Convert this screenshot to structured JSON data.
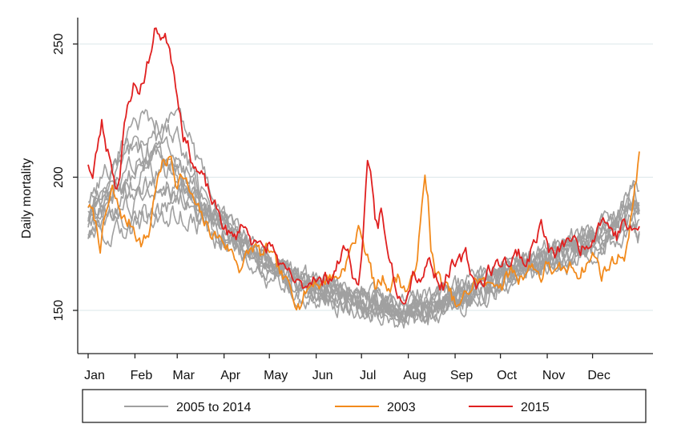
{
  "chart_data": {
    "type": "line",
    "title": "",
    "ylabel": "Daily mortality",
    "xlabel": "",
    "ylim": [
      137,
      260
    ],
    "xlim": [
      0,
      365
    ],
    "y_ticks": [
      150,
      200,
      250
    ],
    "month_ticks": [
      {
        "label": "Jan",
        "day": 0
      },
      {
        "label": "Feb",
        "day": 31
      },
      {
        "label": "Mar",
        "day": 59
      },
      {
        "label": "Apr",
        "day": 90
      },
      {
        "label": "May",
        "day": 120
      },
      {
        "label": "Jun",
        "day": 151
      },
      {
        "label": "Jul",
        "day": 181
      },
      {
        "label": "Aug",
        "day": 212
      },
      {
        "label": "Sep",
        "day": 243
      },
      {
        "label": "Oct",
        "day": 273
      },
      {
        "label": "Nov",
        "day": 304
      },
      {
        "label": "Dec",
        "day": 334
      }
    ],
    "grid": true,
    "legend_position": "bottom",
    "x_unit": "day of year",
    "series": [
      {
        "name": "2005 to 2014",
        "color": "#a0a0a0",
        "lines": [
          {
            "x": [
              0,
              15,
              30,
              45,
              60,
              75,
              90,
              105,
              120,
              135,
              150,
              165,
              180,
              195,
              210,
              225,
              240,
              255,
              270,
              285,
              300,
              315,
              330,
              345,
              360,
              365
            ],
            "y": [
              190,
              205,
              215,
              202,
              195,
              186,
              180,
              172,
              167,
              163,
              160,
              158,
              156,
              154,
              153,
              155,
              158,
              160,
              164,
              167,
              170,
              173,
              176,
              180,
              186,
              184
            ]
          },
          {
            "x": [
              0,
              15,
              30,
              45,
              60,
              75,
              90,
              105,
              120,
              135,
              150,
              165,
              180,
              195,
              210,
              225,
              240,
              255,
              270,
              285,
              300,
              315,
              330,
              345,
              360,
              365
            ],
            "y": [
              185,
              200,
              225,
              215,
              205,
              192,
              182,
              175,
              168,
              162,
              158,
              156,
              153,
              151,
              150,
              152,
              156,
              158,
              162,
              166,
              169,
              172,
              175,
              179,
              185,
              182
            ]
          },
          {
            "x": [
              0,
              15,
              30,
              45,
              60,
              75,
              90,
              105,
              120,
              135,
              150,
              165,
              180,
              195,
              210,
              225,
              240,
              255,
              270,
              285,
              300,
              315,
              330,
              345,
              360,
              365
            ],
            "y": [
              180,
              192,
              205,
              212,
              228,
              200,
              185,
              176,
              170,
              165,
              161,
              158,
              156,
              153,
              151,
              152,
              155,
              158,
              163,
              167,
              170,
              174,
              178,
              183,
              190,
              188
            ]
          },
          {
            "x": [
              0,
              15,
              30,
              45,
              60,
              75,
              90,
              105,
              120,
              135,
              150,
              165,
              180,
              195,
              210,
              225,
              240,
              255,
              270,
              285,
              300,
              315,
              330,
              345,
              360,
              365
            ],
            "y": [
              192,
              185,
              190,
              200,
              210,
              195,
              183,
              174,
              166,
              160,
              157,
              155,
              152,
              150,
              148,
              150,
              154,
              157,
              161,
              165,
              168,
              171,
              174,
              178,
              196,
              194
            ]
          },
          {
            "x": [
              0,
              15,
              30,
              45,
              60,
              75,
              90,
              105,
              120,
              135,
              150,
              165,
              180,
              195,
              210,
              225,
              240,
              255,
              270,
              285,
              300,
              315,
              330,
              345,
              360,
              365
            ],
            "y": [
              178,
              182,
              186,
              184,
              188,
              182,
              176,
              170,
              164,
              159,
              156,
              154,
              151,
              149,
              147,
              149,
              153,
              156,
              160,
              164,
              167,
              170,
              173,
              176,
              180,
              178
            ]
          },
          {
            "x": [
              0,
              15,
              30,
              45,
              60,
              75,
              90,
              105,
              120,
              135,
              150,
              165,
              180,
              195,
              210,
              225,
              240,
              255,
              270,
              285,
              300,
              315,
              330,
              345,
              360,
              365
            ],
            "y": [
              186,
              195,
              200,
              205,
              200,
              190,
              181,
              173,
              167,
              161,
              158,
              156,
              154,
              152,
              150,
              151,
              154,
              157,
              161,
              165,
              168,
              172,
              176,
              181,
              188,
              186
            ]
          },
          {
            "x": [
              0,
              15,
              30,
              45,
              60,
              75,
              90,
              105,
              120,
              135,
              150,
              165,
              180,
              195,
              210,
              225,
              240,
              255,
              270,
              285,
              300,
              315,
              330,
              345,
              360,
              365
            ],
            "y": [
              183,
              188,
              195,
              220,
              215,
              196,
              184,
              176,
              169,
              163,
              160,
              157,
              155,
              153,
              151,
              153,
              156,
              159,
              163,
              166,
              169,
              173,
              177,
              182,
              192,
              190
            ]
          },
          {
            "x": [
              0,
              15,
              30,
              45,
              60,
              75,
              90,
              105,
              120,
              135,
              150,
              165,
              180,
              195,
              210,
              225,
              240,
              255,
              270,
              285,
              300,
              315,
              330,
              345,
              360,
              365
            ],
            "y": [
              182,
              178,
              182,
              186,
              192,
              184,
              178,
              171,
              165,
              160,
              156,
              154,
              152,
              149,
              146,
              148,
              152,
              155,
              159,
              163,
              166,
              169,
              172,
              175,
              178,
              176
            ]
          },
          {
            "x": [
              0,
              15,
              30,
              45,
              60,
              75,
              90,
              105,
              120,
              135,
              150,
              165,
              180,
              195,
              210,
              225,
              240,
              255,
              270,
              285,
              300,
              315,
              330,
              345,
              360,
              365
            ],
            "y": [
              188,
              196,
              210,
              208,
              198,
              188,
              180,
              173,
              168,
              163,
              159,
              157,
              155,
              152,
              150,
              152,
              155,
              158,
              162,
              166,
              170,
              174,
              178,
              184,
              195,
              193
            ]
          },
          {
            "x": [
              0,
              15,
              30,
              45,
              60,
              75,
              90,
              105,
              120,
              135,
              150,
              165,
              180,
              195,
              210,
              225,
              240,
              255,
              270,
              285,
              300,
              315,
              330,
              345,
              360,
              365
            ],
            "y": [
              184,
              190,
              198,
              196,
              194,
              186,
              179,
              172,
              166,
              161,
              157,
              155,
              153,
              151,
              149,
              150,
              154,
              157,
              160,
              164,
              167,
              171,
              175,
              180,
              187,
              185
            ]
          }
        ]
      },
      {
        "name": "2003",
        "color": "#f28a1c",
        "x": [
          0,
          4,
          8,
          12,
          16,
          20,
          25,
          30,
          35,
          40,
          45,
          50,
          55,
          58,
          62,
          66,
          70,
          75,
          80,
          85,
          90,
          95,
          100,
          105,
          110,
          115,
          120,
          125,
          130,
          135,
          140,
          145,
          150,
          155,
          160,
          165,
          170,
          175,
          180,
          183,
          186,
          190,
          195,
          200,
          205,
          210,
          215,
          218,
          221,
          223,
          225,
          227,
          230,
          235,
          240,
          245,
          250,
          255,
          260,
          265,
          270,
          275,
          280,
          285,
          290,
          295,
          300,
          305,
          310,
          315,
          320,
          325,
          330,
          335,
          340,
          345,
          350,
          355,
          358,
          360,
          362,
          364,
          365
        ],
        "y": [
          190,
          184,
          175,
          186,
          194,
          188,
          183,
          182,
          176,
          178,
          198,
          205,
          207,
          199,
          202,
          196,
          190,
          184,
          180,
          178,
          176,
          172,
          167,
          170,
          174,
          170,
          172,
          165,
          160,
          157,
          154,
          158,
          162,
          160,
          164,
          162,
          168,
          174,
          181,
          175,
          168,
          158,
          162,
          160,
          163,
          158,
          160,
          172,
          188,
          198,
          192,
          175,
          163,
          160,
          155,
          150,
          155,
          160,
          162,
          158,
          162,
          160,
          165,
          162,
          166,
          167,
          163,
          168,
          163,
          164,
          166,
          165,
          168,
          171,
          164,
          167,
          170,
          172,
          178,
          186,
          198,
          205,
          208
        ]
      },
      {
        "name": "2015",
        "color": "#e02020",
        "x": [
          0,
          3,
          6,
          9,
          12,
          15,
          18,
          21,
          24,
          27,
          30,
          33,
          36,
          39,
          42,
          45,
          48,
          51,
          54,
          57,
          60,
          63,
          66,
          69,
          72,
          75,
          78,
          81,
          84,
          87,
          90,
          93,
          96,
          99,
          102,
          105,
          108,
          111,
          114,
          117,
          120,
          125,
          130,
          135,
          140,
          145,
          150,
          155,
          160,
          165,
          170,
          173,
          176,
          179,
          182,
          185,
          188,
          190,
          192,
          194,
          197,
          200,
          203,
          206,
          210,
          215,
          220,
          225,
          230,
          235,
          240,
          245,
          250,
          255,
          260,
          265,
          270,
          275,
          280,
          285,
          290,
          295,
          300,
          305,
          310,
          315,
          320,
          325,
          330,
          335,
          340,
          345,
          350,
          355,
          360,
          363,
          365
        ],
        "y": [
          206,
          200,
          210,
          220,
          212,
          208,
          198,
          202,
          218,
          228,
          235,
          232,
          236,
          242,
          248,
          256,
          254,
          252,
          250,
          240,
          230,
          218,
          212,
          207,
          203,
          200,
          196,
          192,
          188,
          185,
          182,
          179,
          176,
          178,
          184,
          180,
          176,
          180,
          174,
          171,
          175,
          170,
          163,
          161,
          158,
          160,
          165,
          160,
          163,
          167,
          174,
          170,
          163,
          158,
          180,
          202,
          195,
          185,
          180,
          188,
          175,
          170,
          162,
          157,
          158,
          166,
          163,
          170,
          164,
          160,
          167,
          166,
          170,
          162,
          160,
          165,
          166,
          170,
          168,
          172,
          168,
          175,
          183,
          172,
          170,
          174,
          178,
          172,
          176,
          180,
          186,
          182,
          178,
          184,
          178,
          180,
          182
        ]
      }
    ]
  },
  "legend": {
    "items": [
      {
        "label": "2005 to 2014",
        "color": "#a0a0a0"
      },
      {
        "label": "2003",
        "color": "#f28a1c"
      },
      {
        "label": "2015",
        "color": "#e02020"
      }
    ]
  }
}
